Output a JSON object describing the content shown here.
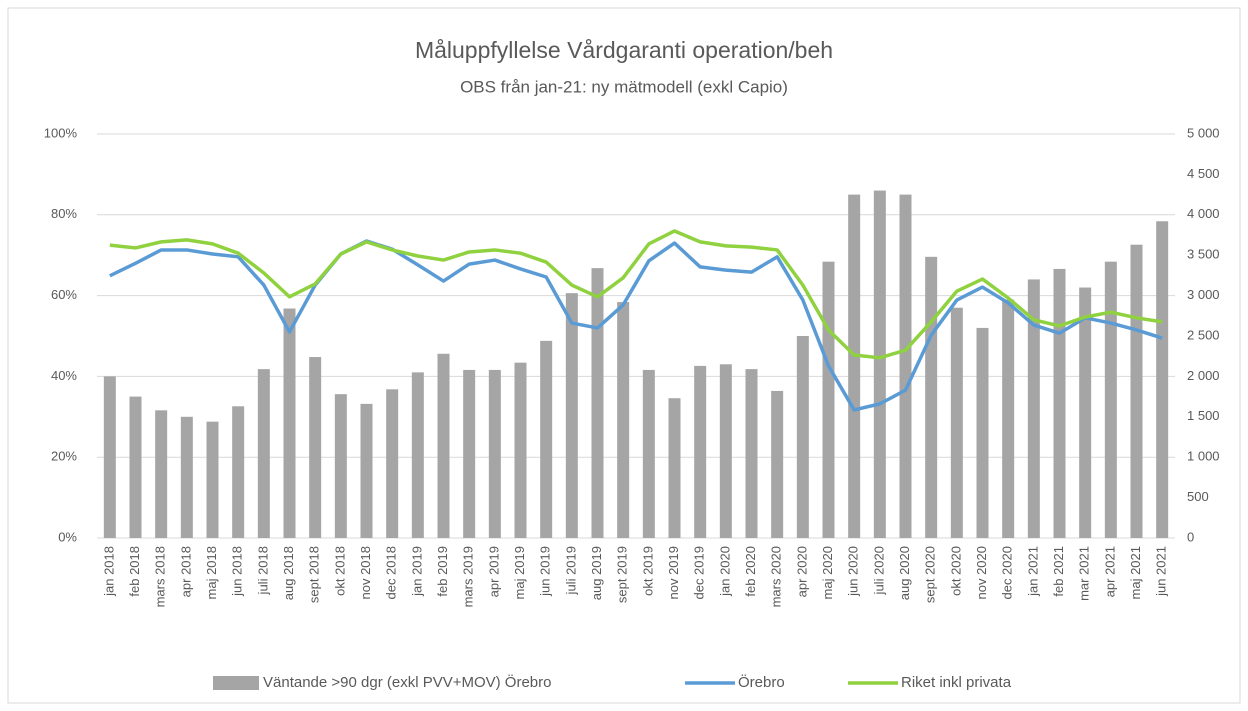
{
  "chart_data": {
    "type": "bar",
    "title": "Måluppfyllelse Vårdgaranti operation/beh",
    "subtitle": "OBS från jan-21: ny mätmodell (exkl Capio)",
    "categories": [
      "jan 2018",
      "feb 2018",
      "mars 2018",
      "apr 2018",
      "maj 2018",
      "jun 2018",
      "juli 2018",
      "aug 2018",
      "sept 2018",
      "okt 2018",
      "nov 2018",
      "dec 2018",
      "jan 2019",
      "feb 2019",
      "mars 2019",
      "apr 2019",
      "maj 2019",
      "jun 2019",
      "juli 2019",
      "aug 2019",
      "sept 2019",
      "okt 2019",
      "nov 2019",
      "dec 2019",
      "jan 2020",
      "feb 2020",
      "mars 2020",
      "apr 2020",
      "maj 2020",
      "jun 2020",
      "juli 2020",
      "aug 2020",
      "sept 2020",
      "okt 2020",
      "nov 2020",
      "dec 2020",
      "jan 2021",
      "feb 2021",
      "mar 2021",
      "apr 2021",
      "maj 2021",
      "jun 2021"
    ],
    "series": [
      {
        "name": "Väntande >90 dgr (exkl PVV+MOV) Örebro",
        "type": "bar",
        "axis": "y2",
        "color": "#a5a5a5",
        "values": [
          2000,
          1750,
          1580,
          1500,
          1440,
          1630,
          2090,
          2840,
          2240,
          1780,
          1660,
          1840,
          2050,
          2280,
          2080,
          2080,
          2170,
          2440,
          3030,
          3340,
          2920,
          2080,
          1730,
          2130,
          2150,
          2090,
          1820,
          2500,
          3420,
          4250,
          4300,
          4250,
          3480,
          2850,
          2600,
          2950,
          3200,
          3330,
          3100,
          3420,
          3630,
          3920
        ]
      },
      {
        "name": "Örebro",
        "type": "line",
        "color": "#5b9bd5",
        "values": [
          64.9,
          68,
          71.3,
          71.3,
          70.3,
          69.6,
          62.6,
          51,
          62.6,
          70.3,
          73.5,
          71.5,
          67.6,
          63.6,
          67.8,
          68.8,
          66.6,
          64.6,
          53.2,
          52,
          57.7,
          68.6,
          73,
          67.1,
          66.3,
          65.8,
          69.6,
          58.9,
          42.6,
          31.7,
          33.2,
          36.6,
          50.2,
          58.9,
          62.1,
          58.2,
          52.7,
          50.7,
          54.5,
          53.2,
          51.5,
          49.5
        ]
      },
      {
        "name": "Riket inkl privata",
        "type": "line",
        "color": "#8fd13f",
        "values": [
          72.5,
          71.8,
          73.3,
          73.8,
          72.8,
          70.5,
          65.6,
          59.7,
          62.9,
          70.3,
          73.3,
          71.3,
          69.8,
          68.8,
          70.8,
          71.3,
          70.5,
          68.3,
          62.6,
          59.7,
          64.4,
          72.8,
          76,
          73.3,
          72.3,
          72,
          71.3,
          62.6,
          51.5,
          45.3,
          44.6,
          46.5,
          53.5,
          61.1,
          64.1,
          59.4,
          54,
          52.5,
          54.7,
          55.9,
          54.5,
          53.5
        ]
      }
    ],
    "ylim": [
      0,
      100
    ],
    "yticks": [
      {
        "value": 0,
        "label": "0%"
      },
      {
        "value": 20,
        "label": "20%"
      },
      {
        "value": 40,
        "label": "40%"
      },
      {
        "value": 60,
        "label": "60%"
      },
      {
        "value": 80,
        "label": "80%"
      },
      {
        "value": 100,
        "label": "100%"
      }
    ],
    "y2lim": [
      0,
      5000
    ],
    "y2ticks": [
      0,
      500,
      {
        "value": 1000,
        "label": "1 000"
      },
      {
        "value": 1500,
        "label": "1 500"
      },
      {
        "value": 2000,
        "label": "2 000"
      },
      {
        "value": 2500,
        "label": "2 500"
      },
      {
        "value": 3000,
        "label": "3 000"
      },
      {
        "value": 3500,
        "label": "3 500"
      },
      {
        "value": 4000,
        "label": "4 000"
      },
      {
        "value": 4500,
        "label": "4 500"
      },
      {
        "value": 5000,
        "label": "5 000"
      }
    ],
    "grid": true,
    "legend": "bottom"
  }
}
